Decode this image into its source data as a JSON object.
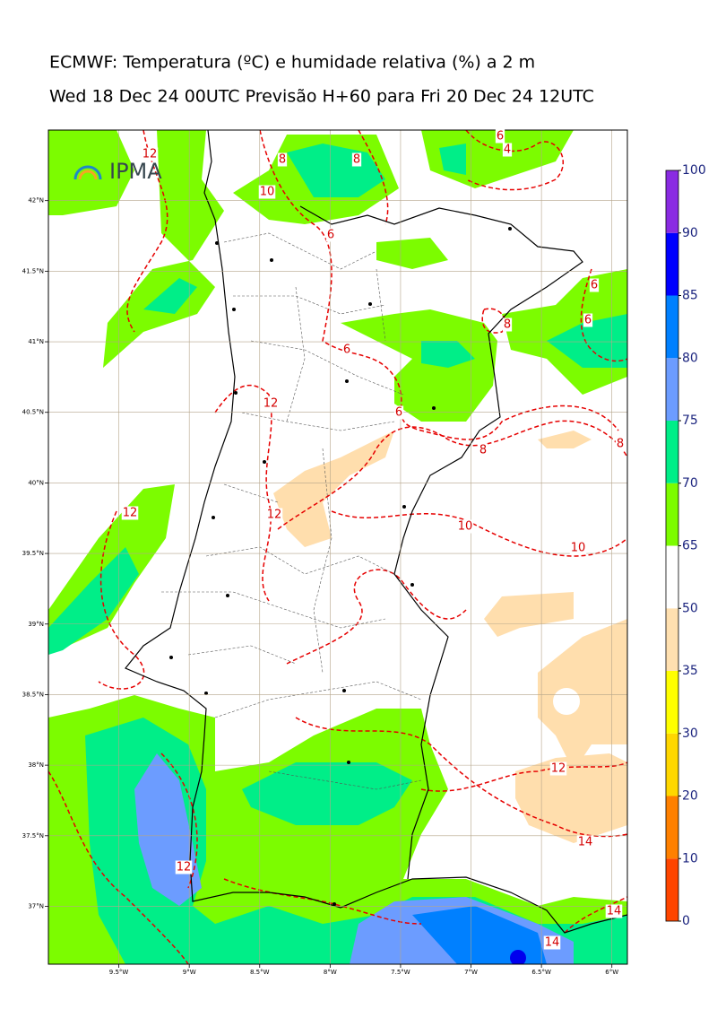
{
  "title": "ECMWF: Temperatura (ºC) e humidade relativa (%) a 2 m",
  "subtitle": "Wed 18 Dec 24 00UTC Previsão H+60 para Fri 20 Dec 24 12UTC",
  "logo": "IPMA",
  "map": {
    "xlim": [
      -10.0,
      -5.89
    ],
    "ylim": [
      36.59,
      42.5
    ],
    "xticks": [
      {
        "value": -9.5,
        "label": "9.5°W"
      },
      {
        "value": -9,
        "label": "9°W"
      },
      {
        "value": -8.5,
        "label": "8.5°W"
      },
      {
        "value": -8,
        "label": "8°W"
      },
      {
        "value": -7.5,
        "label": "7.5°W"
      },
      {
        "value": -7,
        "label": "7°W"
      },
      {
        "value": -6.5,
        "label": "6.5°W"
      },
      {
        "value": -6,
        "label": "6°W"
      }
    ],
    "yticks": [
      {
        "value": 42,
        "label": "42°N"
      },
      {
        "value": 41.5,
        "label": "41.5°N"
      },
      {
        "value": 41,
        "label": "41°N"
      },
      {
        "value": 40.5,
        "label": "40.5°N"
      },
      {
        "value": 40,
        "label": "40°N"
      },
      {
        "value": 39.5,
        "label": "39.5°N"
      },
      {
        "value": 39,
        "label": "39°N"
      },
      {
        "value": 38.5,
        "label": "38.5°N"
      },
      {
        "value": 38,
        "label": "38°N"
      },
      {
        "value": 37.5,
        "label": "37.5°N"
      },
      {
        "value": 37,
        "label": "37°N"
      }
    ],
    "grid": true
  },
  "colorbar": {
    "levels": [
      0,
      10,
      20,
      30,
      35,
      50,
      65,
      70,
      75,
      80,
      85,
      90,
      100
    ],
    "colors": [
      "#ff4500",
      "#ff8000",
      "#ffd700",
      "#ffff00",
      "#ffe0b0",
      "#ffffff",
      "#7cfc00",
      "#00ee88",
      "#6c9cff",
      "#0080ff",
      "#0000ff",
      "#8a2be2"
    ]
  },
  "contour_labels": [
    12,
    8,
    8,
    10,
    6,
    4,
    6,
    6,
    6,
    8,
    6,
    12,
    6,
    8,
    8,
    12,
    12,
    10,
    10,
    12,
    14,
    12,
    14,
    14
  ]
}
